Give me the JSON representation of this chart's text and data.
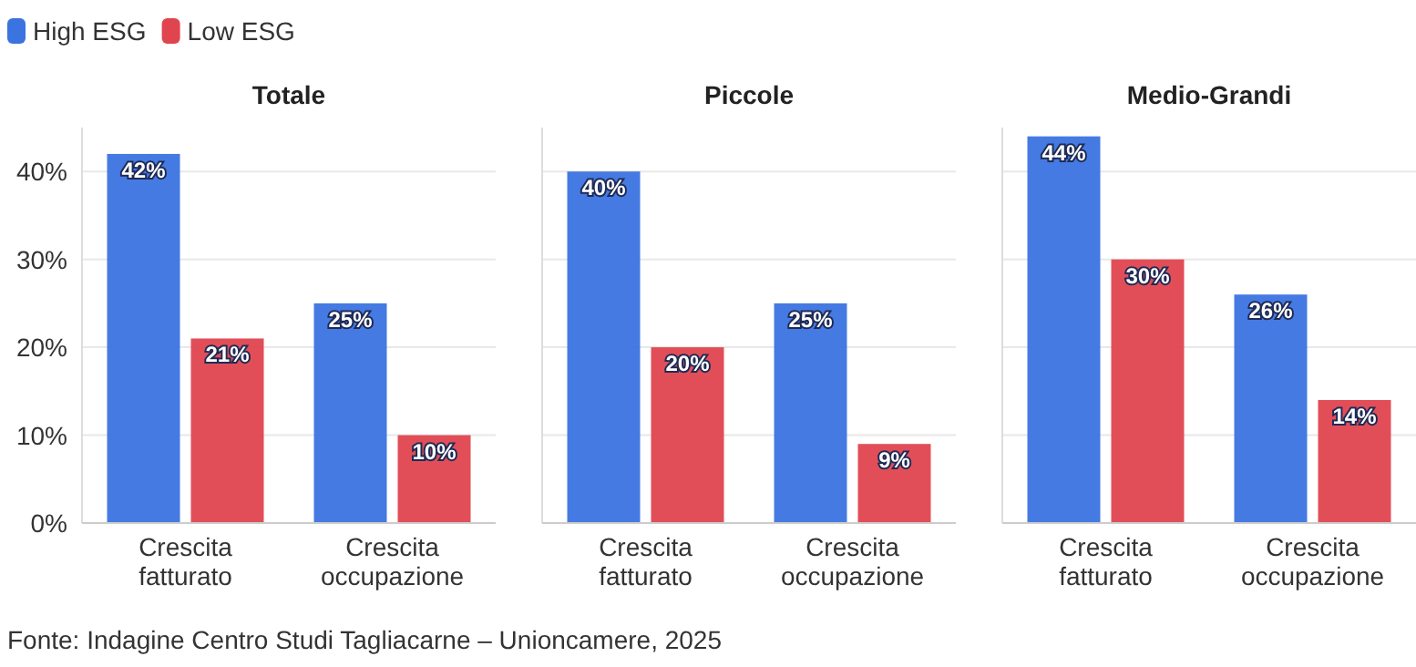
{
  "chart_data": [
    {
      "type": "bar",
      "title": "Totale",
      "categories": [
        "Crescita fatturato",
        "Crescita occupazione"
      ],
      "ylim": [
        0,
        45
      ],
      "yticks": [
        {
          "value": 0,
          "label": "0%"
        },
        {
          "value": 10,
          "label": "10%"
        },
        {
          "value": 20,
          "label": "20%"
        },
        {
          "value": 30,
          "label": "30%"
        },
        {
          "value": 40,
          "label": "40%"
        }
      ],
      "grid": "y",
      "legend": "top left",
      "annotations": [
        "Fonte: Indagine Centro Studi Tagliacarne – Unioncamere, 2025"
      ],
      "series": [
        {
          "name": "High ESG",
          "color": "#3b73e1",
          "values": [
            42,
            25
          ],
          "value_labels": [
            "42%",
            "25%"
          ]
        },
        {
          "name": "Low ESG",
          "color": "#e0444f",
          "values": [
            21,
            10
          ],
          "value_labels": [
            "21%",
            "10%"
          ]
        }
      ]
    },
    {
      "type": "bar",
      "title": "Piccole",
      "categories": [
        "Crescita fatturato",
        "Crescita occupazione"
      ],
      "ylim": [
        0,
        45
      ],
      "tick_labels": "x",
      "grid": "y",
      "yticks": [
        0,
        10,
        20,
        30,
        40
      ],
      "series": [
        {
          "color": "#3b73e1",
          "values": [
            40,
            25
          ],
          "value_labels": [
            "40%",
            "25%"
          ]
        },
        {
          "color": "#e0444f",
          "values": [
            20,
            9
          ],
          "value_labels": [
            "20%",
            "9%"
          ]
        }
      ]
    },
    {
      "type": "bar",
      "title": "Medio-Grandi",
      "categories": [
        "Crescita fatturato",
        "Crescita occupazione"
      ],
      "ylim": [
        0,
        45
      ],
      "tick_labels": "x",
      "grid": "y",
      "yticks": [
        0,
        10,
        20,
        30,
        40
      ],
      "series": [
        {
          "color": "#3b73e1",
          "values": [
            44,
            26
          ],
          "value_labels": [
            "44%",
            "26%"
          ]
        },
        {
          "color": "#e0444f",
          "values": [
            30,
            14
          ],
          "value_labels": [
            "30%",
            "14%"
          ]
        }
      ]
    }
  ]
}
